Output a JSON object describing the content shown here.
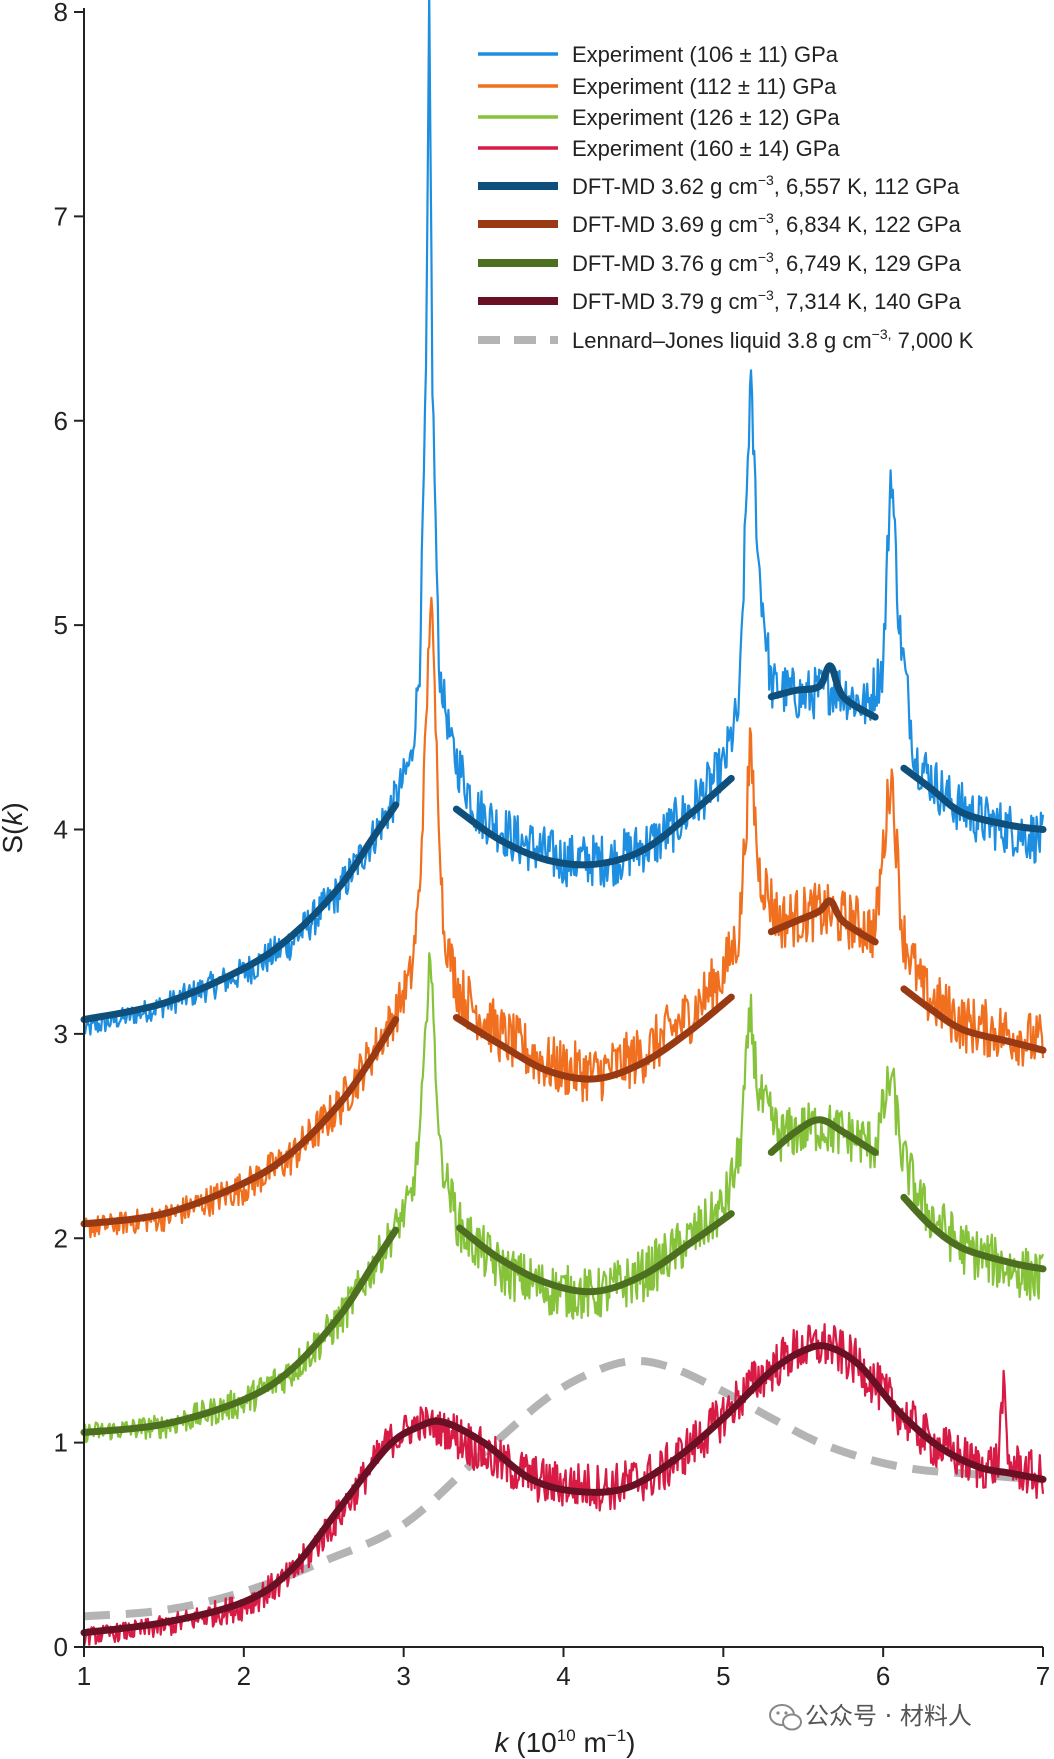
{
  "chart_data": {
    "type": "line",
    "xlabel": "k (10^10 m^-1)",
    "xlabel_parts": {
      "var": "k",
      "open": " (10",
      "exp1": "10",
      "mid": " m",
      "exp2": "−1",
      "close": ")"
    },
    "ylabel": "S(k)",
    "ylabel_parts": {
      "a": "S(",
      "var": "k",
      "b": ")"
    },
    "xlim": [
      1,
      7
    ],
    "ylim": [
      0,
      8
    ],
    "xticks": [
      "1",
      "2",
      "3",
      "4",
      "5",
      "6",
      "7"
    ],
    "yticks": [
      "0",
      "1",
      "2",
      "3",
      "4",
      "5",
      "6",
      "7",
      "8"
    ],
    "grid": false,
    "legend_position": "top-right",
    "series": [
      {
        "name": "Experiment (106 ± 11) GPa",
        "kind": "experiment",
        "color": "#1e8fe0",
        "points": [
          [
            1.0,
            3.02
          ],
          [
            1.5,
            3.14
          ],
          [
            2.0,
            3.3
          ],
          [
            2.3,
            3.45
          ],
          [
            2.6,
            3.7
          ],
          [
            2.8,
            3.95
          ],
          [
            2.95,
            4.15
          ],
          [
            3.05,
            4.35
          ],
          [
            3.1,
            4.8
          ],
          [
            3.14,
            6.2
          ],
          [
            3.16,
            8.0
          ],
          [
            3.18,
            6.2
          ],
          [
            3.22,
            4.8
          ],
          [
            3.3,
            4.4
          ],
          [
            3.45,
            4.1
          ],
          [
            3.7,
            3.95
          ],
          [
            4.0,
            3.85
          ],
          [
            4.3,
            3.85
          ],
          [
            4.6,
            3.95
          ],
          [
            4.8,
            4.1
          ],
          [
            5.0,
            4.3
          ],
          [
            5.1,
            4.6
          ],
          [
            5.17,
            6.2
          ],
          [
            5.22,
            5.3
          ],
          [
            5.3,
            4.7
          ],
          [
            5.5,
            4.65
          ],
          [
            5.7,
            4.7
          ],
          [
            5.9,
            4.6
          ],
          [
            6.0,
            4.8
          ],
          [
            6.05,
            5.8
          ],
          [
            6.1,
            5.0
          ],
          [
            6.2,
            4.35
          ],
          [
            6.4,
            4.15
          ],
          [
            6.6,
            4.05
          ],
          [
            6.8,
            4.0
          ],
          [
            7.0,
            3.95
          ]
        ],
        "noise": 0.1
      },
      {
        "name": "Experiment (112 ± 11) GPa",
        "kind": "experiment",
        "color": "#f07020",
        "points": [
          [
            1.0,
            2.05
          ],
          [
            1.5,
            2.1
          ],
          [
            2.0,
            2.25
          ],
          [
            2.3,
            2.4
          ],
          [
            2.6,
            2.65
          ],
          [
            2.8,
            2.9
          ],
          [
            2.95,
            3.1
          ],
          [
            3.05,
            3.3
          ],
          [
            3.1,
            3.7
          ],
          [
            3.14,
            4.5
          ],
          [
            3.17,
            5.2
          ],
          [
            3.2,
            4.5
          ],
          [
            3.25,
            3.5
          ],
          [
            3.35,
            3.2
          ],
          [
            3.6,
            3.0
          ],
          [
            3.9,
            2.85
          ],
          [
            4.2,
            2.8
          ],
          [
            4.5,
            2.9
          ],
          [
            4.8,
            3.1
          ],
          [
            5.0,
            3.3
          ],
          [
            5.1,
            3.5
          ],
          [
            5.17,
            4.4
          ],
          [
            5.22,
            3.8
          ],
          [
            5.35,
            3.55
          ],
          [
            5.6,
            3.6
          ],
          [
            5.8,
            3.55
          ],
          [
            5.95,
            3.5
          ],
          [
            6.05,
            4.3
          ],
          [
            6.12,
            3.5
          ],
          [
            6.25,
            3.2
          ],
          [
            6.5,
            3.05
          ],
          [
            6.8,
            3.0
          ],
          [
            7.0,
            2.95
          ]
        ],
        "noise": 0.11
      },
      {
        "name": "Experiment (126 ± 12) GPa",
        "kind": "experiment",
        "color": "#86c33a",
        "points": [
          [
            1.0,
            1.05
          ],
          [
            1.5,
            1.08
          ],
          [
            2.0,
            1.2
          ],
          [
            2.3,
            1.35
          ],
          [
            2.6,
            1.6
          ],
          [
            2.8,
            1.85
          ],
          [
            2.95,
            2.05
          ],
          [
            3.05,
            2.2
          ],
          [
            3.1,
            2.5
          ],
          [
            3.14,
            3.0
          ],
          [
            3.16,
            3.45
          ],
          [
            3.19,
            3.0
          ],
          [
            3.23,
            2.4
          ],
          [
            3.35,
            2.05
          ],
          [
            3.6,
            1.85
          ],
          [
            3.9,
            1.75
          ],
          [
            4.2,
            1.72
          ],
          [
            4.5,
            1.82
          ],
          [
            4.8,
            2.0
          ],
          [
            5.0,
            2.15
          ],
          [
            5.1,
            2.4
          ],
          [
            5.17,
            3.1
          ],
          [
            5.22,
            2.7
          ],
          [
            5.35,
            2.5
          ],
          [
            5.6,
            2.55
          ],
          [
            5.8,
            2.5
          ],
          [
            5.95,
            2.45
          ],
          [
            6.05,
            2.8
          ],
          [
            6.12,
            2.4
          ],
          [
            6.25,
            2.15
          ],
          [
            6.5,
            1.95
          ],
          [
            6.8,
            1.85
          ],
          [
            7.0,
            1.8
          ]
        ],
        "noise": 0.1
      },
      {
        "name": "Experiment (160 ± 14) GPa",
        "kind": "experiment",
        "color": "#d81b45",
        "points": [
          [
            1.0,
            0.05
          ],
          [
            1.5,
            0.1
          ],
          [
            2.0,
            0.2
          ],
          [
            2.3,
            0.35
          ],
          [
            2.6,
            0.65
          ],
          [
            2.9,
            1.0
          ],
          [
            3.1,
            1.1
          ],
          [
            3.3,
            1.05
          ],
          [
            3.6,
            0.9
          ],
          [
            3.9,
            0.8
          ],
          [
            4.3,
            0.78
          ],
          [
            4.6,
            0.85
          ],
          [
            4.9,
            1.05
          ],
          [
            5.2,
            1.3
          ],
          [
            5.45,
            1.45
          ],
          [
            5.65,
            1.48
          ],
          [
            5.85,
            1.38
          ],
          [
            6.1,
            1.15
          ],
          [
            6.3,
            1.0
          ],
          [
            6.6,
            0.88
          ],
          [
            6.72,
            0.9
          ],
          [
            6.75,
            1.3
          ],
          [
            6.78,
            0.9
          ],
          [
            7.0,
            0.82
          ]
        ],
        "noise": 0.09
      },
      {
        "name": "DFT-MD 3.62 g cm^-3, 6,557 K, 112 GPa",
        "label_parts": {
          "pre": "DFT-MD 3.62 g cm",
          "sup": "−3",
          "post": ", 6,557 K, 112 GPa"
        },
        "kind": "dft",
        "color": "#0f4f7c",
        "segments": [
          [
            [
              1.0,
              3.07
            ],
            [
              1.5,
              3.15
            ],
            [
              2.0,
              3.32
            ],
            [
              2.3,
              3.48
            ],
            [
              2.6,
              3.72
            ],
            [
              2.8,
              3.95
            ],
            [
              2.95,
              4.12
            ]
          ],
          [
            [
              3.33,
              4.1
            ],
            [
              3.6,
              3.95
            ],
            [
              3.9,
              3.85
            ],
            [
              4.2,
              3.83
            ],
            [
              4.5,
              3.9
            ],
            [
              4.8,
              4.08
            ],
            [
              5.05,
              4.25
            ]
          ],
          [
            [
              5.3,
              4.65
            ],
            [
              5.45,
              4.68
            ],
            [
              5.6,
              4.7
            ],
            [
              5.67,
              4.8
            ],
            [
              5.75,
              4.65
            ],
            [
              5.95,
              4.55
            ]
          ],
          [
            [
              6.13,
              4.3
            ],
            [
              6.3,
              4.2
            ],
            [
              6.5,
              4.08
            ],
            [
              6.8,
              4.02
            ],
            [
              7.0,
              4.0
            ]
          ]
        ]
      },
      {
        "name": "DFT-MD 3.69 g cm^-3, 6,834 K, 122 GPa",
        "label_parts": {
          "pre": "DFT-MD 3.69 g cm",
          "sup": "−3",
          "post": ", 6,834 K, 122 GPa"
        },
        "kind": "dft",
        "color": "#9a3a12",
        "segments": [
          [
            [
              1.0,
              2.07
            ],
            [
              1.5,
              2.12
            ],
            [
              2.0,
              2.27
            ],
            [
              2.3,
              2.42
            ],
            [
              2.6,
              2.66
            ],
            [
              2.8,
              2.88
            ],
            [
              2.95,
              3.07
            ]
          ],
          [
            [
              3.33,
              3.08
            ],
            [
              3.6,
              2.95
            ],
            [
              3.9,
              2.82
            ],
            [
              4.2,
              2.78
            ],
            [
              4.5,
              2.86
            ],
            [
              4.8,
              3.02
            ],
            [
              5.05,
              3.18
            ]
          ],
          [
            [
              5.3,
              3.5
            ],
            [
              5.45,
              3.55
            ],
            [
              5.6,
              3.6
            ],
            [
              5.67,
              3.65
            ],
            [
              5.75,
              3.55
            ],
            [
              5.95,
              3.45
            ]
          ],
          [
            [
              6.13,
              3.22
            ],
            [
              6.3,
              3.12
            ],
            [
              6.5,
              3.02
            ],
            [
              6.8,
              2.96
            ],
            [
              7.0,
              2.92
            ]
          ]
        ]
      },
      {
        "name": "DFT-MD 3.76 g cm^-3, 6,749 K, 129 GPa",
        "label_parts": {
          "pre": "DFT-MD 3.76 g cm",
          "sup": "−3",
          "post": ", 6,749 K, 129 GPa"
        },
        "kind": "dft",
        "color": "#4d7020",
        "segments": [
          [
            [
              1.0,
              1.05
            ],
            [
              1.5,
              1.09
            ],
            [
              2.0,
              1.21
            ],
            [
              2.3,
              1.36
            ],
            [
              2.6,
              1.62
            ],
            [
              2.8,
              1.86
            ],
            [
              2.95,
              2.04
            ]
          ],
          [
            [
              3.35,
              2.05
            ],
            [
              3.6,
              1.9
            ],
            [
              3.9,
              1.78
            ],
            [
              4.2,
              1.74
            ],
            [
              4.5,
              1.82
            ],
            [
              4.8,
              1.98
            ],
            [
              5.05,
              2.12
            ]
          ],
          [
            [
              5.3,
              2.42
            ],
            [
              5.45,
              2.52
            ],
            [
              5.6,
              2.58
            ],
            [
              5.75,
              2.52
            ],
            [
              5.95,
              2.42
            ]
          ],
          [
            [
              6.13,
              2.2
            ],
            [
              6.3,
              2.06
            ],
            [
              6.5,
              1.95
            ],
            [
              6.8,
              1.88
            ],
            [
              7.0,
              1.85
            ]
          ]
        ]
      },
      {
        "name": "DFT-MD 3.79 g cm^-3, 7,314 K, 140 GPa",
        "label_parts": {
          "pre": "DFT-MD 3.79 g cm",
          "sup": "−3",
          "post": ", 7,314 K, 140 GPa"
        },
        "kind": "dft",
        "color": "#6a1024",
        "segments": [
          [
            [
              1.0,
              0.07
            ],
            [
              1.5,
              0.12
            ],
            [
              2.0,
              0.22
            ],
            [
              2.3,
              0.38
            ],
            [
              2.6,
              0.68
            ],
            [
              2.9,
              0.98
            ],
            [
              3.1,
              1.08
            ],
            [
              3.25,
              1.1
            ],
            [
              3.5,
              1.0
            ],
            [
              3.8,
              0.82
            ],
            [
              4.1,
              0.76
            ],
            [
              4.4,
              0.78
            ],
            [
              4.7,
              0.92
            ],
            [
              5.0,
              1.12
            ],
            [
              5.3,
              1.35
            ],
            [
              5.5,
              1.45
            ],
            [
              5.65,
              1.47
            ],
            [
              5.85,
              1.38
            ],
            [
              6.1,
              1.15
            ],
            [
              6.35,
              0.98
            ],
            [
              6.6,
              0.88
            ],
            [
              6.8,
              0.85
            ],
            [
              7.0,
              0.82
            ]
          ]
        ]
      },
      {
        "name": "Lennard–Jones liquid 3.8 g cm^-3, 7,000 K",
        "label_parts": {
          "pre": "Lennard–Jones liquid 3.8 g cm",
          "sup": "−3,",
          "post": " 7,000 K"
        },
        "kind": "lj",
        "color": "#b4b4b4",
        "segments": [
          [
            [
              1.0,
              0.15
            ],
            [
              1.5,
              0.18
            ],
            [
              2.0,
              0.27
            ],
            [
              2.5,
              0.42
            ],
            [
              3.0,
              0.6
            ],
            [
              3.5,
              0.95
            ],
            [
              3.9,
              1.22
            ],
            [
              4.2,
              1.35
            ],
            [
              4.45,
              1.4
            ],
            [
              4.7,
              1.36
            ],
            [
              5.0,
              1.25
            ],
            [
              5.3,
              1.12
            ],
            [
              5.6,
              1.0
            ],
            [
              5.9,
              0.92
            ],
            [
              6.2,
              0.87
            ],
            [
              6.5,
              0.85
            ],
            [
              6.8,
              0.83
            ],
            [
              7.0,
              0.82
            ]
          ]
        ]
      }
    ]
  },
  "watermark": {
    "text": "公众号 · 材料人",
    "icon": "wechat-icon"
  }
}
